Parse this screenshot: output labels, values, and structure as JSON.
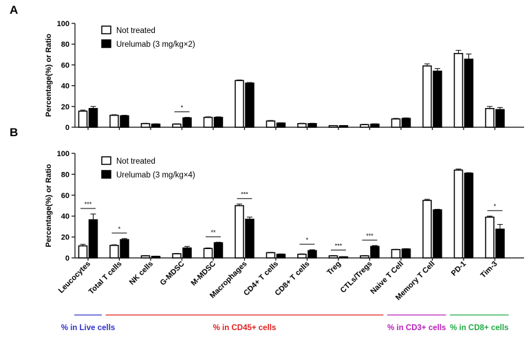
{
  "panels": [
    {
      "label": "A",
      "legend": [
        "Not treated",
        "Urelumab (3 mg/kg×2)"
      ],
      "ylabel": "Percentage(%) or Ratio",
      "yticks": [
        "0",
        "20",
        "40",
        "60",
        "80",
        "100"
      ],
      "significance": [
        {
          "category_index": 3,
          "text": "*"
        }
      ]
    },
    {
      "label": "B",
      "legend": [
        "Not treated",
        "Urelumab (3 mg/kg×4)"
      ],
      "ylabel": "Percentage(%) or Ratio",
      "yticks": [
        "0",
        "20",
        "40",
        "60",
        "80",
        "100"
      ],
      "significance": [
        {
          "category_index": 0,
          "text": "***"
        },
        {
          "category_index": 1,
          "text": "*"
        },
        {
          "category_index": 4,
          "text": "**"
        },
        {
          "category_index": 5,
          "text": "***"
        },
        {
          "category_index": 7,
          "text": "*"
        },
        {
          "category_index": 8,
          "text": "***"
        },
        {
          "category_index": 9,
          "text": "***"
        },
        {
          "category_index": 13,
          "text": "*"
        }
      ]
    }
  ],
  "chart_data": [
    {
      "type": "bar",
      "panel": "A",
      "ylabel": "Percentage(%) or Ratio",
      "ylim": [
        0,
        100
      ],
      "categories": [
        "Leucocytes",
        "Total T cells",
        "NK cells",
        "G-MDSC",
        "M-MDSC",
        "Macrophages",
        "CD4+ T cells",
        "CD8+ T cells",
        "Treg",
        "CTLs/Tregs",
        "Naive T Cell",
        "Memory T Cell",
        "PD-1",
        "Tim-3"
      ],
      "series": [
        {
          "name": "Not treated",
          "values": [
            15.5,
            11.5,
            3.5,
            3,
            9.5,
            45,
            6,
            3.5,
            1.5,
            2.5,
            8,
            59,
            71,
            18
          ],
          "errors": [
            1,
            0.5,
            0.3,
            0.3,
            0.5,
            0.5,
            0.5,
            0.3,
            0.2,
            0.3,
            0.5,
            2,
            3,
            2
          ]
        },
        {
          "name": "Urelumab (3 mg/kg×2)",
          "values": [
            18,
            11,
            3,
            9,
            9.5,
            42.5,
            4,
            3.5,
            1.5,
            3,
            8.5,
            54,
            65.5,
            17
          ],
          "errors": [
            2,
            0.5,
            0.3,
            0.5,
            0.5,
            0.5,
            0.3,
            0.3,
            0.2,
            0.3,
            0.5,
            2.5,
            5,
            2
          ]
        }
      ]
    },
    {
      "type": "bar",
      "panel": "B",
      "ylabel": "Percentage(%) or Ratio",
      "ylim": [
        0,
        100
      ],
      "categories": [
        "Leucocytes",
        "Total T cells",
        "NK cells",
        "G-MDSC",
        "M-MDSC",
        "Macrophages",
        "CD4+ T cells",
        "CD8+ T cells",
        "Treg",
        "CTLs/Tregs",
        "Naive T Cell",
        "Memory T Cell",
        "PD-1",
        "Tim-3"
      ],
      "series": [
        {
          "name": "Not treated",
          "values": [
            11.5,
            12,
            2,
            4,
            9,
            50,
            5,
            3.5,
            2,
            2,
            8,
            55,
            84,
            39
          ],
          "errors": [
            1.5,
            0.5,
            0.2,
            0.3,
            0.5,
            1.5,
            0.3,
            0.3,
            0.2,
            0.2,
            0.3,
            1,
            1,
            1
          ]
        },
        {
          "name": "Urelumab (3 mg/kg×4)",
          "values": [
            36.5,
            17.5,
            1.5,
            9.5,
            14.5,
            37,
            3.5,
            7,
            1,
            11,
            8.5,
            46,
            81,
            27.5
          ],
          "errors": [
            5.5,
            1,
            0.2,
            1.5,
            0.5,
            2,
            0.3,
            0.8,
            0.2,
            0.8,
            0.3,
            0.5,
            0.5,
            4.5
          ]
        }
      ]
    }
  ],
  "groups": [
    {
      "label": "% in Live cells",
      "color": "#3333cc",
      "from": 0,
      "to": 0
    },
    {
      "label": "% in CD45+ cells",
      "color": "#dd2222",
      "from": 1,
      "to": 9
    },
    {
      "label": "% in CD3+ cells",
      "color": "#bb22bb",
      "from": 10,
      "to": 11
    },
    {
      "label": "% in CD8+ cells",
      "color": "#22aa44",
      "from": 12,
      "to": 13
    }
  ]
}
